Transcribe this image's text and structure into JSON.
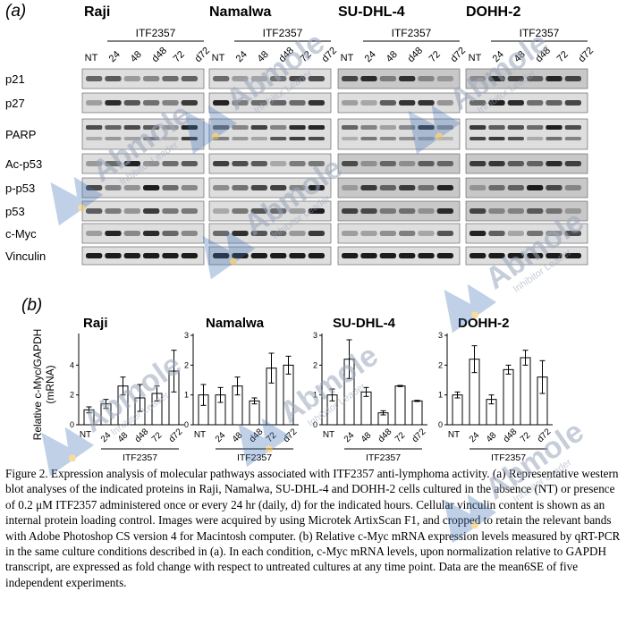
{
  "panel_a": {
    "label": "(a)",
    "cell_lines": [
      "Raji",
      "Namalwa",
      "SU-DHL-4",
      "DOHH-2"
    ],
    "group_label": "ITF2357",
    "lanes": [
      "NT",
      "24",
      "48",
      "d48",
      "72",
      "d72"
    ],
    "proteins": [
      "p21",
      "p27",
      "PARP",
      "Ac-p53",
      "p-p53",
      "p53",
      "c-Myc",
      "Vinculin"
    ]
  },
  "panel_b": {
    "label": "(b)",
    "ylabel_line1": "Relative c-Myc/GAPDH",
    "ylabel_line2": "(mRNA)",
    "group_label": "ITF2357",
    "categories": [
      "NT",
      "24",
      "48",
      "d48",
      "72",
      "d72"
    ]
  },
  "chart_data": [
    {
      "type": "bar",
      "title": "Raji",
      "categories": [
        "NT",
        "24",
        "48",
        "d48",
        "72",
        "d72"
      ],
      "values": [
        1.0,
        1.4,
        2.6,
        1.8,
        2.1,
        3.6
      ],
      "errors": [
        0.2,
        0.3,
        0.6,
        0.9,
        0.5,
        1.4
      ],
      "ylim": [
        0,
        6
      ],
      "ytick_labels": [
        "0",
        "2",
        "4"
      ]
    },
    {
      "type": "bar",
      "title": "Namalwa",
      "categories": [
        "NT",
        "24",
        "48",
        "d48",
        "72",
        "d72"
      ],
      "values": [
        1.0,
        1.0,
        1.3,
        0.8,
        1.9,
        2.0
      ],
      "errors": [
        0.35,
        0.25,
        0.3,
        0.1,
        0.5,
        0.3
      ],
      "ylim": [
        0,
        3
      ],
      "ytick_labels": [
        "0",
        "1",
        "2",
        "3"
      ]
    },
    {
      "type": "bar",
      "title": "SU-DHL-4",
      "categories": [
        "NT",
        "24",
        "48",
        "d48",
        "72",
        "d72"
      ],
      "values": [
        1.0,
        2.2,
        1.1,
        0.4,
        1.3,
        0.8
      ],
      "errors": [
        0.2,
        0.65,
        0.15,
        0.07,
        0.02,
        0.02
      ],
      "ylim": [
        0,
        3
      ],
      "ytick_labels": [
        "0",
        "1",
        "2",
        "3"
      ]
    },
    {
      "type": "bar",
      "title": "DOHH-2",
      "categories": [
        "NT",
        "24",
        "48",
        "d48",
        "72",
        "d72"
      ],
      "values": [
        1.0,
        2.2,
        0.85,
        1.85,
        2.25,
        1.6
      ],
      "errors": [
        0.1,
        0.45,
        0.15,
        0.15,
        0.25,
        0.55
      ],
      "ylim": [
        0,
        3
      ],
      "ytick_labels": [
        "0",
        "1",
        "2",
        "3"
      ]
    }
  ],
  "caption": "Figure 2. Expression analysis of molecular pathways associated with ITF2357 anti-lymphoma activity. (a) Representative western blot analyses of the indicated proteins in Raji, Namalwa, SU-DHL-4 and DOHH-2 cells cultured in the absence (NT) or presence of 0.2 μM ITF2357 administered once or every 24 hr (daily, d) for the indicated hours. Cellular vinculin content is shown as an internal protein loading control. Images were acquired by using Microtek ArtixScan F1, and cropped to retain the relevant bands with Adobe Photoshop CS version 4 for Macintosh computer. (b) Relative c-Myc mRNA expression levels measured by qRT-PCR in the same culture conditions described in (a). In each condition, c-Myc mRNA levels, upon normalization relative to GAPDH transcript, are expressed as fold change with respect to untreated cultures at any time point. Data are the mean6SE of five independent experiments.",
  "watermark": {
    "brand": "Abmole",
    "tagline": "Inhibitor Leader",
    "color": "#9aa7bd",
    "accent": "#3d6fb6",
    "dot": "#f2c14e"
  },
  "colors": {
    "blot_bg": "#d8d8d8",
    "band_dark": "#1a1a1a"
  }
}
